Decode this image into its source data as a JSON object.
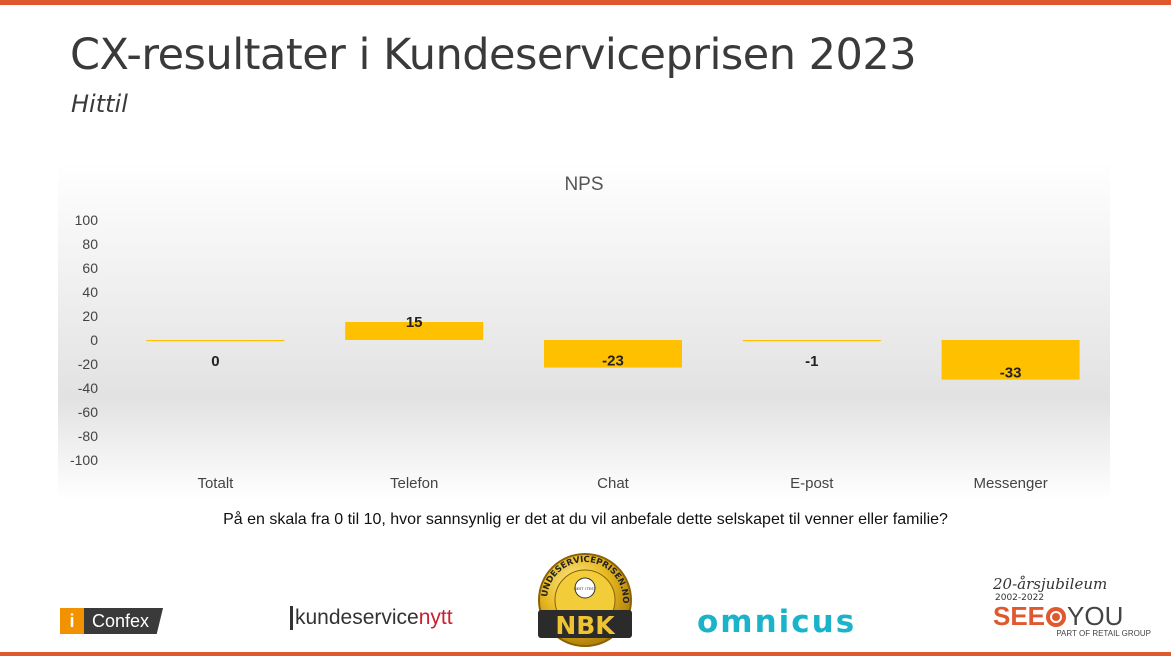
{
  "page": {
    "title": "CX-resultater i Kundeserviceprisen 2023",
    "subtitle": "Hittil",
    "question": "På en skala fra 0 til 10, hvor sannsynlig er det at du vil anbefale dette selskapet til venner eller familie?"
  },
  "colors": {
    "accent": "#e0582e",
    "bar": "#ffc000"
  },
  "chart_data": {
    "type": "bar",
    "title": "NPS",
    "categories": [
      "Totalt",
      "Telefon",
      "Chat",
      "E-post",
      "Messenger"
    ],
    "values": [
      0,
      15,
      -23,
      -1,
      -33
    ],
    "data_labels": [
      "0",
      "15",
      "-23",
      "-1",
      "-33"
    ],
    "yticks": [
      100,
      80,
      60,
      40,
      20,
      0,
      -20,
      -40,
      -60,
      -80,
      -100
    ],
    "ylim": [
      -100,
      100
    ],
    "grid": false,
    "legend": "none"
  },
  "logos": {
    "confex": {
      "mark": "i",
      "text": "Confex"
    },
    "kundeservicenytt": {
      "part1": "kundeservice",
      "part2": "nytt"
    },
    "nbk_badge": {
      "ring_text": "KUNDESERVICEPRISEN.NO",
      "center": "NBK",
      "seal": "BEST I TEST"
    },
    "omnicus": {
      "text": "omnicus"
    },
    "seeyou": {
      "jubilee": "20-årsjubileum",
      "years": "2002-2022",
      "name_a": "SEE",
      "name_b": "YOU",
      "part_of": "PART OF RETAIL GROUP"
    }
  }
}
